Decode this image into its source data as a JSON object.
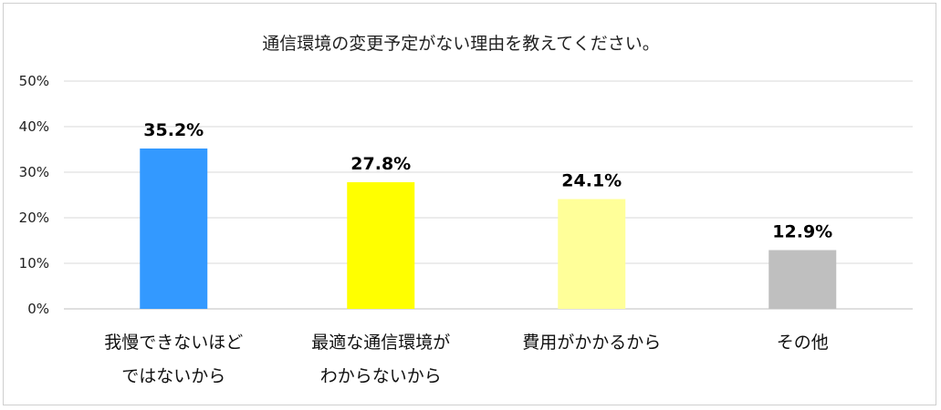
{
  "chart_data": {
    "type": "bar",
    "title": "通信環境の変更予定がない理由を教えてください。",
    "categories": [
      [
        "我慢できないほど",
        "ではないから"
      ],
      [
        "最適な通信環境が",
        "わからないから"
      ],
      [
        "費用がかかるから"
      ],
      [
        "その他"
      ]
    ],
    "values": [
      35.2,
      27.8,
      24.1,
      12.9
    ],
    "data_labels": [
      "35.2%",
      "27.8%",
      "24.1%",
      "12.9%"
    ],
    "bar_colors": [
      "#3399FF",
      "#FFFF00",
      "#FFFF99",
      "#BFBFBF"
    ],
    "ylim": [
      0,
      50
    ],
    "yticks": [
      "0%",
      "10%",
      "20%",
      "30%",
      "40%",
      "50%"
    ],
    "ytick_values": [
      0,
      10,
      20,
      30,
      40,
      50
    ],
    "grid": true,
    "legend": "none"
  }
}
